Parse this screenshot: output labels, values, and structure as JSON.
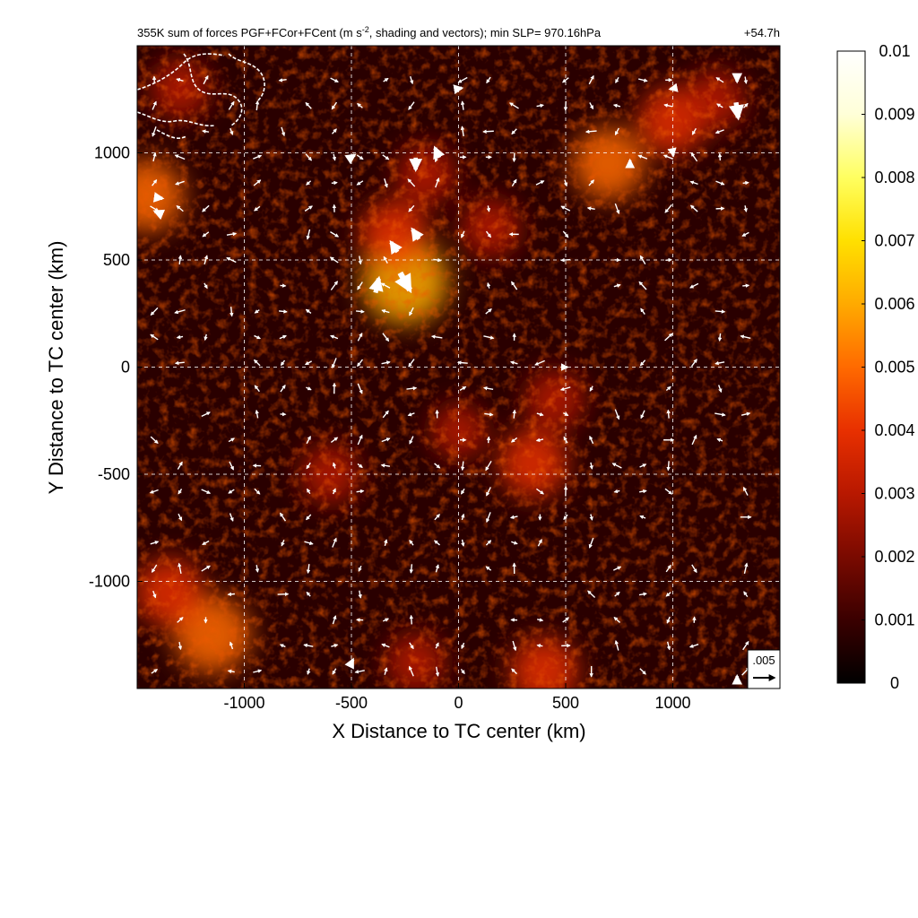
{
  "chart_data": {
    "type": "heatmap",
    "title": "355K sum of forces PGF+FCor+FCent (m s",
    "title_sup": "-2",
    "title_rest": ", shading and vectors); min SLP= 970.16hPa",
    "time_label": "+54.7h",
    "xlabel": "X Distance to TC center (km)",
    "ylabel": "Y Distance to TC center (km)",
    "xlim": [
      -1500,
      1500
    ],
    "ylim": [
      -1500,
      1500
    ],
    "xticks": [
      -1000,
      -500,
      0,
      500,
      1000
    ],
    "yticks": [
      -1000,
      -500,
      0,
      500,
      1000
    ],
    "grid": true,
    "colorbar": {
      "range": [
        0,
        0.01
      ],
      "ticks": [
        "0",
        "0.001",
        "0.002",
        "0.003",
        "0.004",
        "0.005",
        "0.006",
        "0.007",
        "0.008",
        "0.009",
        "0.01"
      ],
      "colormap": [
        "#000000",
        "#3a0000",
        "#7a0a00",
        "#b81800",
        "#e83000",
        "#ff6a00",
        "#ffaa00",
        "#ffe000",
        "#ffff60",
        "#ffffd8",
        "#ffffff"
      ]
    },
    "reference_vector": {
      "label": ".005",
      "magnitude": 0.005
    },
    "hotspots": [
      {
        "x": -250,
        "y": 400,
        "v": 0.006
      },
      {
        "x": -300,
        "y": 620,
        "v": 0.004
      },
      {
        "x": -150,
        "y": 900,
        "v": 0.003
      },
      {
        "x": 150,
        "y": 650,
        "v": 0.003
      },
      {
        "x": 700,
        "y": 950,
        "v": 0.0045
      },
      {
        "x": 1000,
        "y": 1150,
        "v": 0.004
      },
      {
        "x": 1200,
        "y": 1250,
        "v": 0.003
      },
      {
        "x": -1450,
        "y": 800,
        "v": 0.0045
      },
      {
        "x": -1150,
        "y": -1250,
        "v": 0.005
      },
      {
        "x": -1350,
        "y": -1050,
        "v": 0.004
      },
      {
        "x": 350,
        "y": -450,
        "v": 0.004
      },
      {
        "x": 450,
        "y": -150,
        "v": 0.003
      },
      {
        "x": -600,
        "y": -500,
        "v": 0.003
      },
      {
        "x": 0,
        "y": -300,
        "v": 0.0025
      },
      {
        "x": 400,
        "y": -1420,
        "v": 0.004
      },
      {
        "x": -200,
        "y": -1380,
        "v": 0.003
      },
      {
        "x": -1300,
        "y": 1300,
        "v": 0.003
      }
    ],
    "vectors": [
      {
        "x": -250,
        "y": 400,
        "u": 0.0018,
        "v": -0.0032
      },
      {
        "x": -380,
        "y": 380,
        "u": 0.0006,
        "v": 0.0026
      },
      {
        "x": -300,
        "y": 560,
        "u": -0.0012,
        "v": 0.0018
      },
      {
        "x": -200,
        "y": 620,
        "u": -0.0012,
        "v": 0.0018
      },
      {
        "x": -200,
        "y": 950,
        "u": 0.0,
        "v": -0.0022
      },
      {
        "x": -100,
        "y": 1000,
        "u": -0.0008,
        "v": 0.0018
      },
      {
        "x": -500,
        "y": 980,
        "u": 0.0012,
        "v": 0.0008
      },
      {
        "x": -1400,
        "y": 720,
        "u": -0.0014,
        "v": 0.0006
      },
      {
        "x": -1400,
        "y": 790,
        "u": 0.0014,
        "v": -0.0002
      },
      {
        "x": 1300,
        "y": 1200,
        "u": 0.0004,
        "v": -0.0028
      },
      {
        "x": 1300,
        "y": 1350,
        "u": 0.0,
        "v": -0.0014
      },
      {
        "x": 800,
        "y": 950,
        "u": 0.0,
        "v": 0.0012
      },
      {
        "x": 1000,
        "y": 1000,
        "u": 0.0002,
        "v": -0.001
      },
      {
        "x": -500,
        "y": -1380,
        "u": 0.0006,
        "v": 0.0012
      },
      {
        "x": 1300,
        "y": -1460,
        "u": 0.0,
        "v": 0.0014
      },
      {
        "x": 0,
        "y": 1300,
        "u": 0.0012,
        "v": 0.0002
      },
      {
        "x": 1000,
        "y": 1300,
        "u": -0.001,
        "v": -0.0002
      },
      {
        "x": 500,
        "y": 0,
        "u": 0.0006,
        "v": 0.0
      }
    ],
    "coastline_note": "white coastline contours in top-left corner"
  }
}
